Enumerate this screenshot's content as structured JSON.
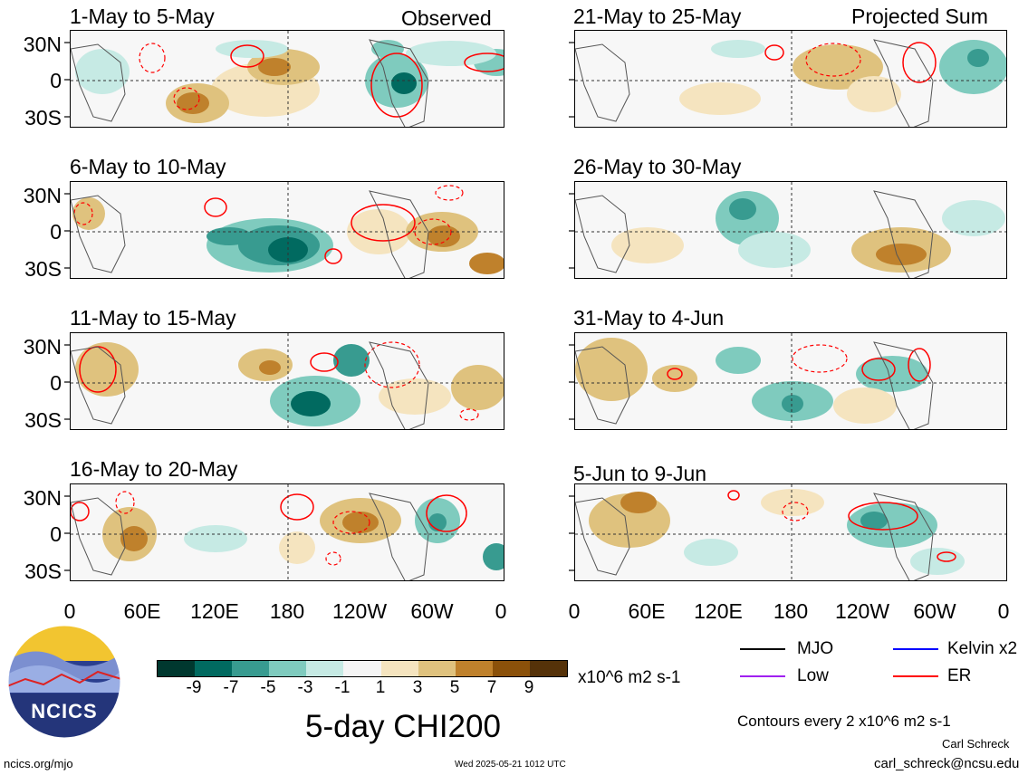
{
  "labels": {
    "observed": "Observed",
    "projected": "Projected Sum"
  },
  "panels": [
    {
      "id": "p1",
      "title": "1-May to 5-May"
    },
    {
      "id": "p2",
      "title": "6-May to 10-May"
    },
    {
      "id": "p3",
      "title": "11-May to 15-May"
    },
    {
      "id": "p4",
      "title": "16-May to 20-May"
    },
    {
      "id": "p5",
      "title": "21-May to 25-May"
    },
    {
      "id": "p6",
      "title": "26-May to 30-May"
    },
    {
      "id": "p7",
      "title": "31-May to 4-Jun"
    },
    {
      "id": "p8",
      "title": "5-Jun to 9-Jun"
    }
  ],
  "lat_ticks": [
    "30N",
    "0",
    "30S"
  ],
  "lon_ticks": [
    "0",
    "60E",
    "120E",
    "180",
    "120W",
    "60W",
    "0"
  ],
  "colorbar": {
    "colors": [
      "#00382f",
      "#016a60",
      "#389b90",
      "#7fcbbe",
      "#c6eae4",
      "#f5f5f5",
      "#f5e4bf",
      "#dfc27e",
      "#bf812c",
      "#8b510a",
      "#553209"
    ],
    "ticks": [
      "-9",
      "-7",
      "-5",
      "-3",
      "-1",
      "1",
      "3",
      "5",
      "7",
      "9"
    ],
    "units": "x10^6 m2 s-1"
  },
  "main_title": "5-day CHI200",
  "legend": {
    "items": [
      {
        "label": "MJO",
        "color": "#000000"
      },
      {
        "label": "Kelvin x2",
        "color": "#0000ff"
      },
      {
        "label": "Low",
        "color": "#a020f0"
      },
      {
        "label": "ER",
        "color": "#ff0000"
      }
    ],
    "contours_note": "Contours every 2 x10^6 m2 s-1"
  },
  "logo_text": "NCICS",
  "footer": {
    "url": "ncics.org/mjo",
    "timestamp": "Wed 2025-05-21 1012 UTC",
    "author": "Carl Schreck",
    "email": "carl_schreck@ncsu.edu"
  }
}
